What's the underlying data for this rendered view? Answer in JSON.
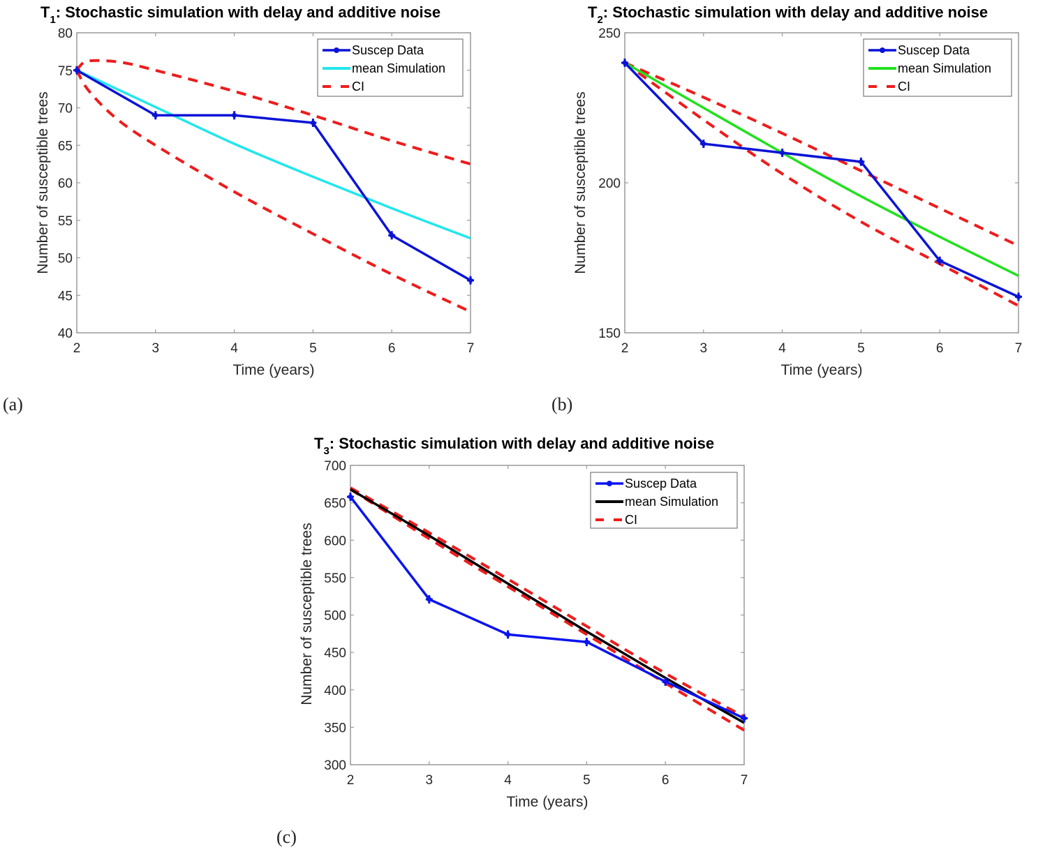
{
  "chart_data": [
    {
      "id": "a",
      "type": "line",
      "panel_label": "(a)",
      "title_main": "T",
      "title_sub": "1",
      "title_rest": ": Stochastic simulation with delay and additive noise",
      "title": "T1: Stochastic simulation with delay and additive noise",
      "xlabel": "Time (years)",
      "ylabel": "Number of susceptible trees",
      "xlim": [
        2,
        7
      ],
      "ylim": [
        40,
        80
      ],
      "xticks": [
        2,
        3,
        4,
        5,
        6,
        7
      ],
      "yticks": [
        40,
        45,
        50,
        55,
        60,
        65,
        70,
        75,
        80
      ],
      "legend_position": "top-right",
      "colors": {
        "data": "#0a14d6",
        "mean": "#22e6ee",
        "ci": "#ee1c1c"
      },
      "series": [
        {
          "name": "Suscep Data",
          "role": "data",
          "x": [
            2,
            3,
            4,
            5,
            6,
            7
          ],
          "values": [
            75,
            69,
            69,
            68,
            53,
            47
          ]
        },
        {
          "name": "mean Simulation",
          "role": "mean",
          "x": [
            2,
            3,
            4,
            5,
            6,
            7
          ],
          "values": [
            75,
            70.1,
            65.2,
            60.8,
            56.6,
            52.6
          ]
        },
        {
          "name": "CI",
          "role": "ci",
          "x": [
            2,
            2.1,
            2.3,
            2.6,
            3,
            4,
            5,
            6,
            7
          ],
          "values": [
            75,
            76.1,
            76.3,
            76.0,
            75,
            72.2,
            69,
            65.6,
            62.5
          ]
        },
        {
          "name": "CI lower",
          "role": "ci-lower",
          "x": [
            2,
            2.15,
            2.5,
            3,
            4,
            5,
            6,
            7
          ],
          "values": [
            75,
            72.3,
            68.6,
            65,
            58.8,
            53.2,
            47.8,
            42.8
          ]
        }
      ],
      "legend": [
        "Suscep Data",
        "mean Simulation",
        "CI"
      ]
    },
    {
      "id": "b",
      "type": "line",
      "panel_label": "(b)",
      "title_main": "T",
      "title_sub": "2",
      "title_rest": ": Stochastic simulation with delay and additive noise",
      "title": "T2: Stochastic simulation with delay and additive noise",
      "xlabel": "Time (years)",
      "ylabel": "Number of susceptible trees",
      "xlim": [
        2,
        7
      ],
      "ylim": [
        150,
        250
      ],
      "xticks": [
        2,
        3,
        4,
        5,
        6,
        7
      ],
      "yticks": [
        150,
        200,
        250
      ],
      "legend_position": "top-right",
      "colors": {
        "data": "#0a14d6",
        "mean": "#22e01e",
        "ci": "#ee1c1c"
      },
      "series": [
        {
          "name": "Suscep Data",
          "role": "data",
          "x": [
            2,
            3,
            4,
            5,
            6,
            7
          ],
          "values": [
            240,
            213,
            210,
            207,
            174,
            162
          ]
        },
        {
          "name": "mean Simulation",
          "role": "mean",
          "x": [
            2,
            3,
            4,
            5,
            6,
            7
          ],
          "values": [
            240,
            225,
            210,
            195.5,
            182,
            169
          ]
        },
        {
          "name": "CI",
          "role": "ci",
          "x": [
            2,
            3,
            4,
            5,
            6,
            7
          ],
          "values": [
            240,
            228.5,
            216.5,
            204,
            191.5,
            179
          ]
        },
        {
          "name": "CI lower",
          "role": "ci-lower",
          "x": [
            2,
            3,
            4,
            5,
            6,
            7
          ],
          "values": [
            240,
            221,
            203,
            187,
            173,
            159
          ]
        }
      ],
      "legend": [
        "Suscep Data",
        "mean Simulation",
        "CI"
      ]
    },
    {
      "id": "c",
      "type": "line",
      "panel_label": "(c)",
      "title_main": "T",
      "title_sub": "3",
      "title_rest": ": Stochastic simulation with delay and additive noise",
      "title": "T3: Stochastic simulation with delay and additive noise",
      "xlabel": "Time (years)",
      "ylabel": "Number of susceptible trees",
      "xlim": [
        2,
        7
      ],
      "ylim": [
        300,
        700
      ],
      "xticks": [
        2,
        3,
        4,
        5,
        6,
        7
      ],
      "yticks": [
        300,
        350,
        400,
        450,
        500,
        550,
        600,
        650,
        700
      ],
      "legend_position": "top-right",
      "colors": {
        "data": "#0a14ee",
        "mean": "#000000",
        "ci": "#ee1c1c"
      },
      "series": [
        {
          "name": "Suscep Data",
          "role": "data",
          "x": [
            2,
            3,
            4,
            5,
            6,
            7
          ],
          "values": [
            658,
            521,
            474,
            464,
            411,
            362
          ]
        },
        {
          "name": "mean Simulation",
          "role": "mean",
          "x": [
            2,
            3,
            4,
            5,
            6,
            7
          ],
          "values": [
            668,
            606,
            542,
            478,
            416,
            356
          ]
        },
        {
          "name": "CI",
          "role": "ci",
          "x": [
            2,
            3,
            4,
            5,
            6,
            7
          ],
          "values": [
            670,
            610,
            548,
            485,
            422,
            364
          ]
        },
        {
          "name": "CI lower",
          "role": "ci-lower",
          "x": [
            2,
            3,
            4,
            5,
            6,
            7
          ],
          "values": [
            668,
            602,
            538,
            474,
            409,
            346
          ]
        }
      ],
      "legend": [
        "Suscep Data",
        "mean Simulation",
        "CI"
      ]
    }
  ]
}
